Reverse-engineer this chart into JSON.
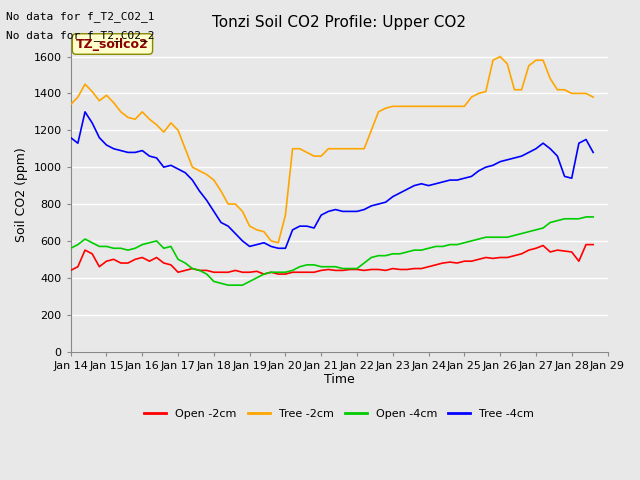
{
  "title": "Tonzi Soil CO2 Profile: Upper CO2",
  "xlabel": "Time",
  "ylabel": "Soil CO2 (ppm)",
  "no_data_text": [
    "No data for f_T2_CO2_1",
    "No data for f_T2_CO2_2"
  ],
  "legend_label_text": "TZ_soilco2",
  "legend_entries": [
    "Open -2cm",
    "Tree -2cm",
    "Open -4cm",
    "Tree -4cm"
  ],
  "legend_colors": [
    "#ff0000",
    "#ffa500",
    "#00cc00",
    "#0000ff"
  ],
  "ylim": [
    0,
    1700
  ],
  "yticks": [
    0,
    200,
    400,
    600,
    800,
    1000,
    1200,
    1400,
    1600
  ],
  "bg_color": "#e8e8e8",
  "plot_bg_color": "#e8e8e8",
  "grid_color": "#ffffff",
  "start_day": 14,
  "end_day": 29,
  "open2_x": [
    14.0,
    14.2,
    14.4,
    14.6,
    14.8,
    15.0,
    15.2,
    15.4,
    15.6,
    15.8,
    16.0,
    16.2,
    16.4,
    16.6,
    16.8,
    17.0,
    17.2,
    17.4,
    17.6,
    17.8,
    18.0,
    18.2,
    18.4,
    18.6,
    18.8,
    19.0,
    19.2,
    19.4,
    19.6,
    19.8,
    20.0,
    20.2,
    20.4,
    20.6,
    20.8,
    21.0,
    21.2,
    21.4,
    21.6,
    21.8,
    22.0,
    22.2,
    22.4,
    22.6,
    22.8,
    23.0,
    23.2,
    23.4,
    23.6,
    23.8,
    24.0,
    24.2,
    24.4,
    24.6,
    24.8,
    25.0,
    25.2,
    25.4,
    25.6,
    25.8,
    26.0,
    26.2,
    26.4,
    26.6,
    26.8,
    27.0,
    27.2,
    27.4,
    27.6,
    27.8,
    28.0,
    28.2,
    28.4,
    28.6
  ],
  "open2_y": [
    440,
    460,
    550,
    530,
    460,
    490,
    500,
    480,
    480,
    500,
    510,
    490,
    510,
    480,
    470,
    430,
    440,
    450,
    440,
    440,
    430,
    430,
    430,
    440,
    430,
    430,
    435,
    420,
    430,
    420,
    420,
    430,
    430,
    430,
    430,
    440,
    445,
    440,
    440,
    445,
    445,
    440,
    445,
    445,
    440,
    450,
    445,
    445,
    450,
    450,
    460,
    470,
    480,
    485,
    480,
    490,
    490,
    500,
    510,
    505,
    510,
    510,
    520,
    530,
    550,
    560,
    575,
    540,
    550,
    545,
    540,
    490,
    580,
    580
  ],
  "tree2_x": [
    14.0,
    14.2,
    14.4,
    14.6,
    14.8,
    15.0,
    15.2,
    15.4,
    15.6,
    15.8,
    16.0,
    16.2,
    16.4,
    16.6,
    16.8,
    17.0,
    17.2,
    17.4,
    17.6,
    17.8,
    18.0,
    18.2,
    18.4,
    18.6,
    18.8,
    19.0,
    19.2,
    19.4,
    19.6,
    19.8,
    20.0,
    20.2,
    20.4,
    20.6,
    20.8,
    21.0,
    21.2,
    21.4,
    21.6,
    21.8,
    22.0,
    22.2,
    22.4,
    22.6,
    22.8,
    23.0,
    23.2,
    23.4,
    23.6,
    23.8,
    24.0,
    24.2,
    24.4,
    24.6,
    24.8,
    25.0,
    25.2,
    25.4,
    25.6,
    25.8,
    26.0,
    26.2,
    26.4,
    26.6,
    26.8,
    27.0,
    27.2,
    27.4,
    27.6,
    27.8,
    28.0,
    28.2,
    28.4,
    28.6
  ],
  "tree2_y": [
    1340,
    1380,
    1450,
    1410,
    1360,
    1390,
    1350,
    1300,
    1270,
    1260,
    1300,
    1260,
    1230,
    1190,
    1240,
    1200,
    1100,
    1000,
    980,
    960,
    930,
    870,
    800,
    800,
    760,
    680,
    660,
    650,
    600,
    590,
    740,
    1100,
    1100,
    1080,
    1060,
    1060,
    1100,
    1100,
    1100,
    1100,
    1100,
    1100,
    1200,
    1300,
    1320,
    1330,
    1330,
    1330,
    1330,
    1330,
    1330,
    1330,
    1330,
    1330,
    1330,
    1330,
    1380,
    1400,
    1410,
    1580,
    1600,
    1560,
    1420,
    1420,
    1550,
    1580,
    1580,
    1480,
    1420,
    1420,
    1400,
    1400,
    1400,
    1380
  ],
  "open4_x": [
    14.0,
    14.2,
    14.4,
    14.6,
    14.8,
    15.0,
    15.2,
    15.4,
    15.6,
    15.8,
    16.0,
    16.2,
    16.4,
    16.6,
    16.8,
    17.0,
    17.2,
    17.4,
    17.6,
    17.8,
    18.0,
    18.2,
    18.4,
    18.6,
    18.8,
    19.0,
    19.2,
    19.4,
    19.6,
    19.8,
    20.0,
    20.2,
    20.4,
    20.6,
    20.8,
    21.0,
    21.2,
    21.4,
    21.6,
    21.8,
    22.0,
    22.2,
    22.4,
    22.6,
    22.8,
    23.0,
    23.2,
    23.4,
    23.6,
    23.8,
    24.0,
    24.2,
    24.4,
    24.6,
    24.8,
    25.0,
    25.2,
    25.4,
    25.6,
    25.8,
    26.0,
    26.2,
    26.4,
    26.6,
    26.8,
    27.0,
    27.2,
    27.4,
    27.6,
    27.8,
    28.0,
    28.2,
    28.4,
    28.6
  ],
  "open4_y": [
    560,
    580,
    610,
    590,
    570,
    570,
    560,
    560,
    550,
    560,
    580,
    590,
    600,
    560,
    570,
    500,
    480,
    450,
    440,
    420,
    380,
    370,
    360,
    360,
    360,
    380,
    400,
    420,
    430,
    430,
    430,
    440,
    460,
    470,
    470,
    460,
    460,
    460,
    450,
    450,
    450,
    480,
    510,
    520,
    520,
    530,
    530,
    540,
    550,
    550,
    560,
    570,
    570,
    580,
    580,
    590,
    600,
    610,
    620,
    620,
    620,
    620,
    630,
    640,
    650,
    660,
    670,
    700,
    710,
    720,
    720,
    720,
    730,
    730
  ],
  "tree4_x": [
    14.0,
    14.2,
    14.4,
    14.6,
    14.8,
    15.0,
    15.2,
    15.4,
    15.6,
    15.8,
    16.0,
    16.2,
    16.4,
    16.6,
    16.8,
    17.0,
    17.2,
    17.4,
    17.6,
    17.8,
    18.0,
    18.2,
    18.4,
    18.6,
    18.8,
    19.0,
    19.2,
    19.4,
    19.6,
    19.8,
    20.0,
    20.2,
    20.4,
    20.6,
    20.8,
    21.0,
    21.2,
    21.4,
    21.6,
    21.8,
    22.0,
    22.2,
    22.4,
    22.6,
    22.8,
    23.0,
    23.2,
    23.4,
    23.6,
    23.8,
    24.0,
    24.2,
    24.4,
    24.6,
    24.8,
    25.0,
    25.2,
    25.4,
    25.6,
    25.8,
    26.0,
    26.2,
    26.4,
    26.6,
    26.8,
    27.0,
    27.2,
    27.4,
    27.6,
    27.8,
    28.0,
    28.2,
    28.4,
    28.6
  ],
  "tree4_y": [
    1160,
    1130,
    1300,
    1240,
    1160,
    1120,
    1100,
    1090,
    1080,
    1080,
    1090,
    1060,
    1050,
    1000,
    1010,
    990,
    970,
    930,
    870,
    820,
    760,
    700,
    680,
    640,
    600,
    570,
    580,
    590,
    570,
    560,
    560,
    660,
    680,
    680,
    670,
    740,
    760,
    770,
    760,
    760,
    760,
    770,
    790,
    800,
    810,
    840,
    860,
    880,
    900,
    910,
    900,
    910,
    920,
    930,
    930,
    940,
    950,
    980,
    1000,
    1010,
    1030,
    1040,
    1050,
    1060,
    1080,
    1100,
    1130,
    1100,
    1060,
    950,
    940,
    1130,
    1150,
    1080
  ]
}
